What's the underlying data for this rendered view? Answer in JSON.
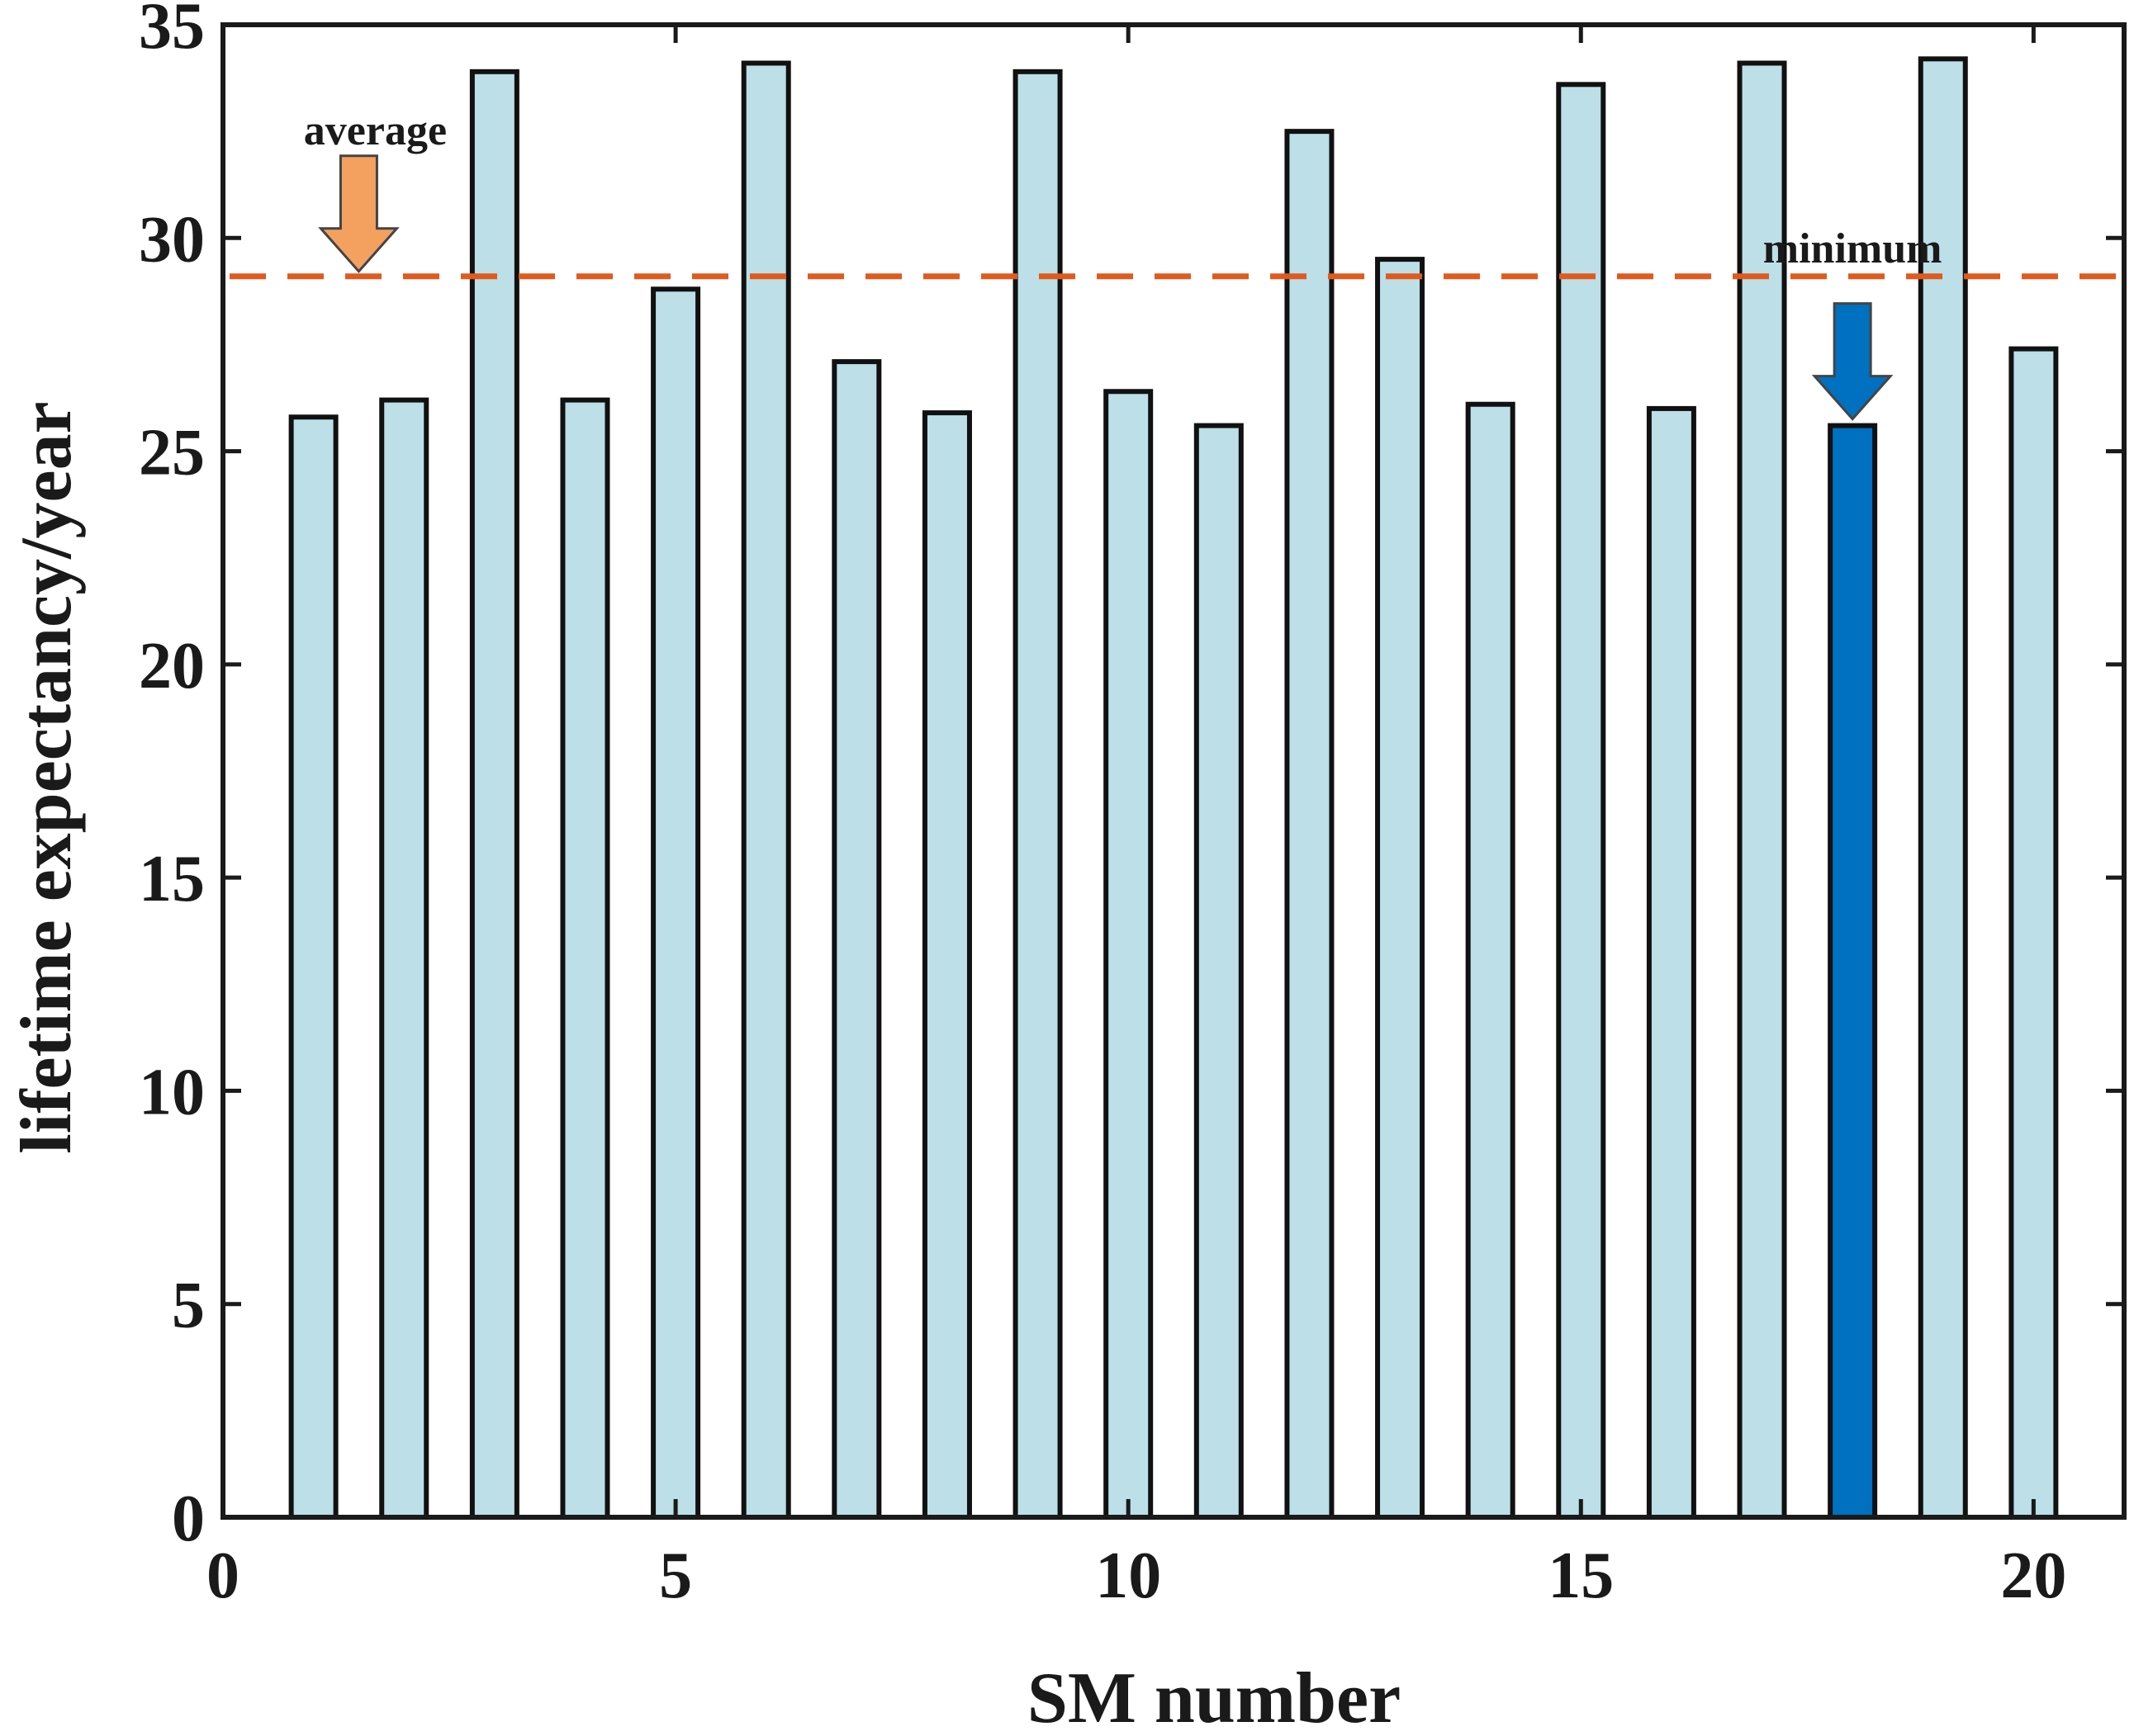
{
  "chart_data": {
    "type": "bar",
    "xlabel": "SM number",
    "ylabel": "lifetime expectancy/year",
    "xlim": [
      0,
      21
    ],
    "ylim": [
      0,
      35
    ],
    "xticks": [
      0,
      5,
      10,
      15,
      20
    ],
    "yticks": [
      0,
      5,
      10,
      15,
      20,
      25,
      30,
      35
    ],
    "categories": [
      1,
      2,
      3,
      4,
      5,
      6,
      7,
      8,
      9,
      10,
      11,
      12,
      13,
      14,
      15,
      16,
      17,
      18,
      19,
      20
    ],
    "values": [
      25.8,
      26.2,
      33.9,
      26.2,
      28.8,
      34.1,
      27.1,
      25.9,
      33.9,
      26.4,
      25.6,
      32.5,
      29.5,
      26.1,
      33.6,
      26.0,
      34.1,
      25.6,
      34.2,
      27.4
    ],
    "bar_color": "#bcdfe8",
    "highlight_index": 17,
    "highlight_color": "#0070c0",
    "edge_color": "#111111",
    "average_line": {
      "value": 29.1,
      "color": "#e05a1e",
      "style": "dashed"
    },
    "annotations": [
      {
        "label": "average",
        "x": 1.5,
        "arrow_color": "#f4a160"
      },
      {
        "label": "minimum",
        "x": 18,
        "arrow_color": "#0070c0"
      }
    ]
  }
}
